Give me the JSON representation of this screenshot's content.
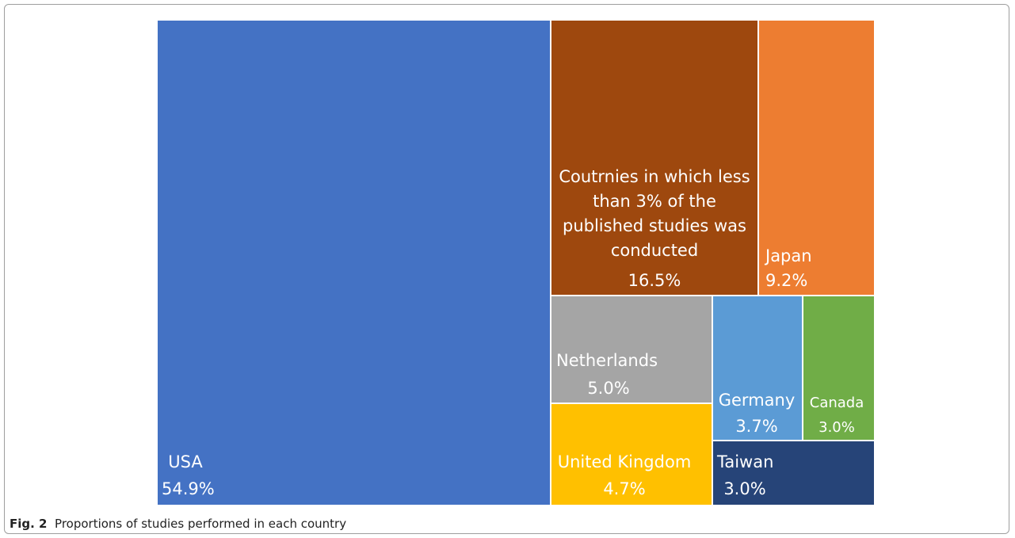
{
  "chart_data": {
    "type": "treemap",
    "unit": "%",
    "items": [
      {
        "id": "usa",
        "label": [
          "USA"
        ],
        "value": 54.9,
        "display": "54.9%",
        "color": "#4472C4"
      },
      {
        "id": "other",
        "label": [
          "Coutrnies in which less",
          "than 3% of the",
          "published studies was",
          "conducted"
        ],
        "value": 16.5,
        "display": "16.5%",
        "color": "#9E480E"
      },
      {
        "id": "japan",
        "label": [
          "Japan"
        ],
        "value": 9.2,
        "display": "9.2%",
        "color": "#ED7D31"
      },
      {
        "id": "netherlands",
        "label": [
          "Netherlands"
        ],
        "value": 5.0,
        "display": "5.0%",
        "color": "#A5A5A5"
      },
      {
        "id": "uk",
        "label": [
          "United Kingdom"
        ],
        "value": 4.7,
        "display": "4.7%",
        "color": "#FFC000"
      },
      {
        "id": "germany",
        "label": [
          "Germany"
        ],
        "value": 3.7,
        "display": "3.7%",
        "color": "#5B9BD5"
      },
      {
        "id": "canada",
        "label": [
          "Canada"
        ],
        "value": 3.0,
        "display": "3.0%",
        "color": "#70AD47"
      },
      {
        "id": "taiwan",
        "label": [
          "Taiwan"
        ],
        "value": 3.0,
        "display": "3.0%",
        "color": "#264478"
      }
    ]
  },
  "caption": {
    "fig_label": "Fig. 2",
    "text": "Proportions of studies performed in each country"
  }
}
